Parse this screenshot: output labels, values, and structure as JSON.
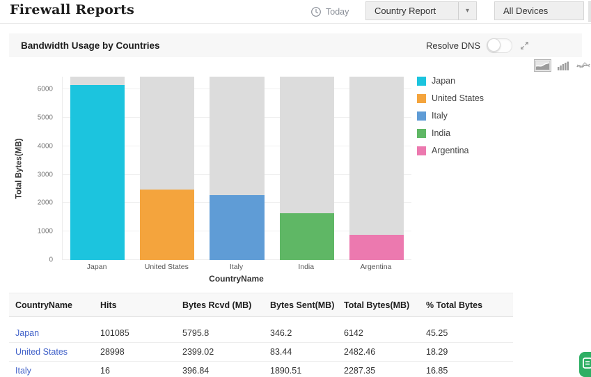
{
  "page": {
    "title": "Firewall Reports"
  },
  "toolbar": {
    "today_label": "Today",
    "report_select_value": "Country Report",
    "device_select_value": "All Devices",
    "dropdown_arrow_glyph": "▾"
  },
  "widget": {
    "title": "Bandwidth Usage by Countries",
    "resolve_dns_label": "Resolve DNS",
    "resolve_dns_state": "off",
    "chart_type_icons": [
      "area-chart-icon",
      "bar-chart-icon",
      "line-chart-icon"
    ],
    "selected_chart_type": "area-chart-icon"
  },
  "chart_data": {
    "type": "bar",
    "categories": [
      "Japan",
      "United States",
      "Italy",
      "India",
      "Argentina"
    ],
    "values": [
      6142,
      2482.46,
      2287.35,
      1640,
      880
    ],
    "series_colors": [
      "#1cc4de",
      "#f4a43d",
      "#5f9cd6",
      "#5fb765",
      "#ec79af"
    ],
    "track_color": "#dcdcdc",
    "xlabel": "CountryName",
    "ylabel": "Total Bytes(MB)",
    "ylim": [
      0,
      6440
    ],
    "yticks": [
      0,
      1000,
      2000,
      3000,
      4000,
      5000,
      6000
    ],
    "grid": true,
    "legend_position": "right",
    "legend": [
      {
        "label": "Japan",
        "color": "#1cc4de"
      },
      {
        "label": "United States",
        "color": "#f4a43d"
      },
      {
        "label": "Italy",
        "color": "#5f9cd6"
      },
      {
        "label": "India",
        "color": "#5fb765"
      },
      {
        "label": "Argentina",
        "color": "#ec79af"
      }
    ]
  },
  "table": {
    "columns": [
      "CountryName",
      "Hits",
      "Bytes Rcvd (MB)",
      "Bytes Sent(MB)",
      "Total Bytes(MB)",
      "% Total Bytes"
    ],
    "rows": [
      [
        "Japan",
        "101085",
        "5795.8",
        "346.2",
        "6142",
        "45.25"
      ],
      [
        "United States",
        "28998",
        "2399.02",
        "83.44",
        "2482.46",
        "18.29"
      ],
      [
        "Italy",
        "16",
        "396.84",
        "1890.51",
        "2287.35",
        "16.85"
      ]
    ],
    "link_color": "#4262c9"
  },
  "chat_widget": {
    "color": "#2eaf64"
  }
}
